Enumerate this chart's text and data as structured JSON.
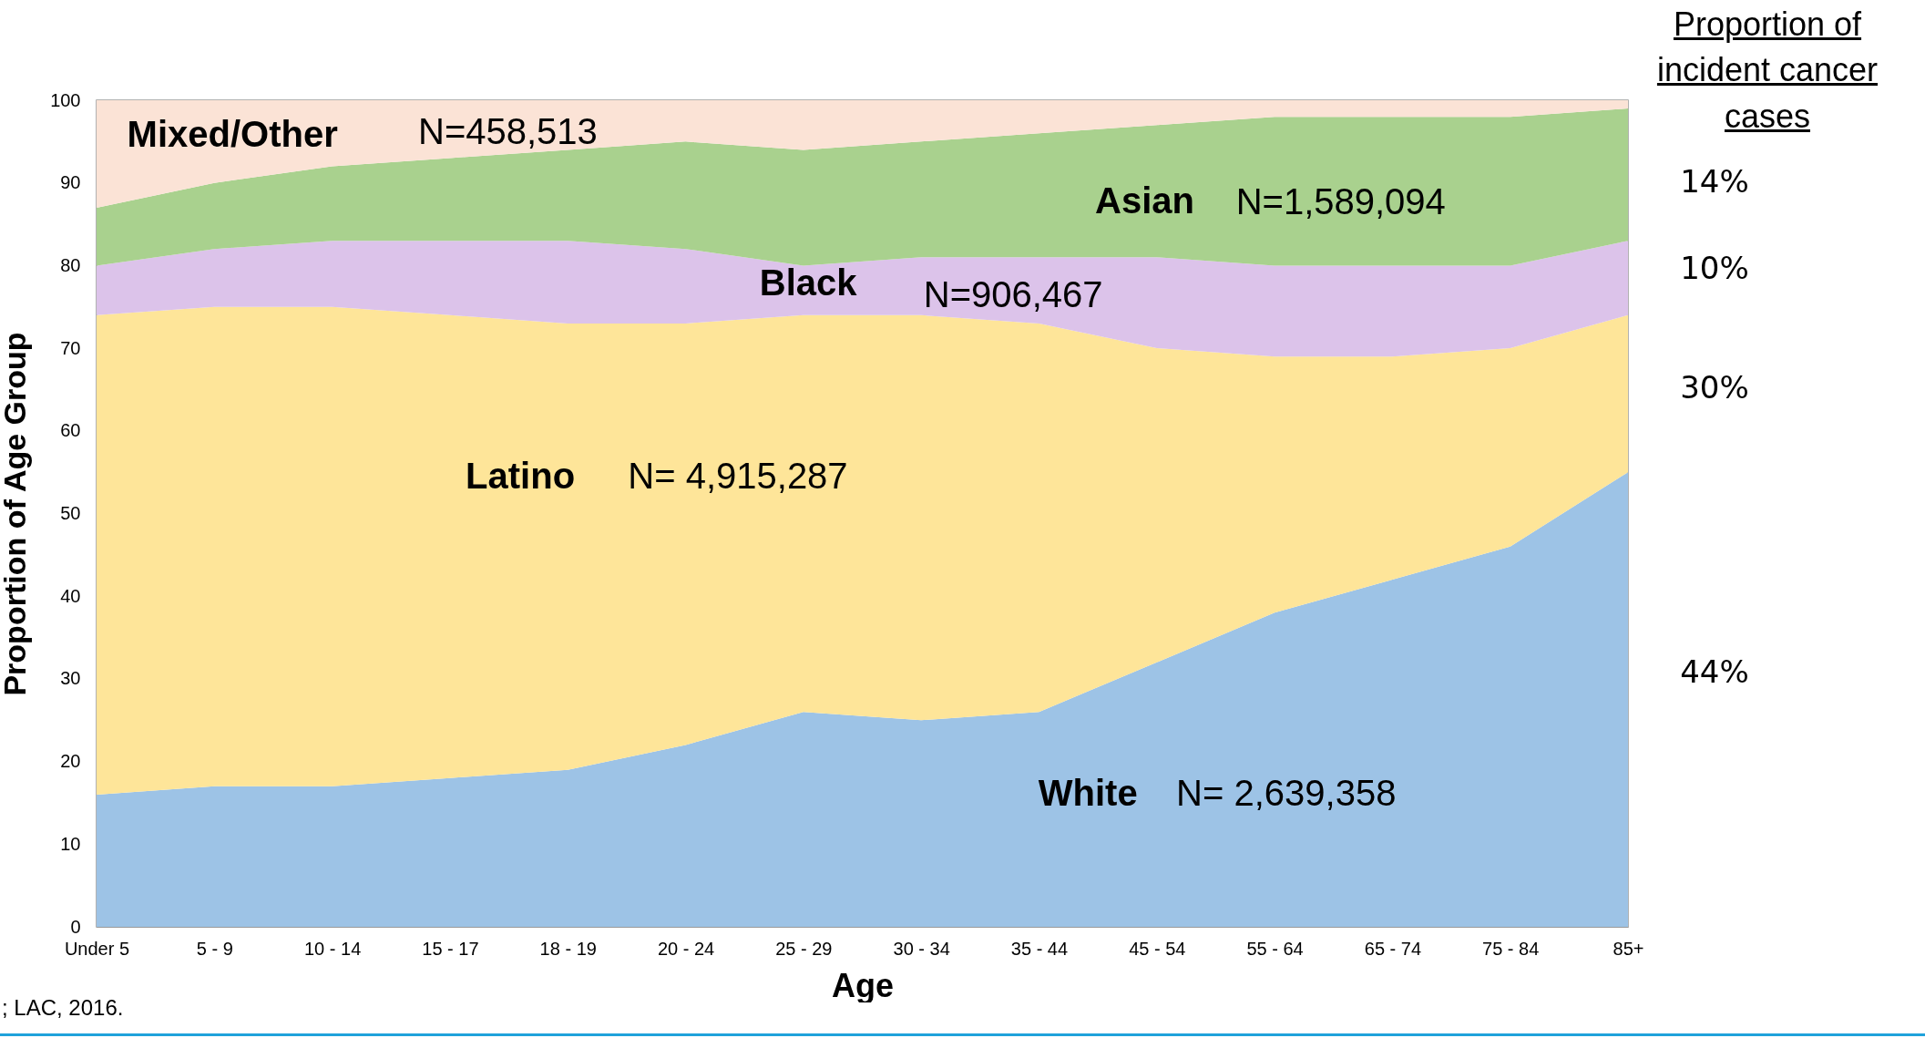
{
  "chart_data": {
    "type": "area",
    "stacked": true,
    "xlabel": "Age",
    "ylabel": "Proportion of Age Group",
    "categories": [
      "Under 5",
      "5 - 9",
      "10 - 14",
      "15 - 17",
      "18 - 19",
      "20 - 24",
      "25 - 29",
      "30 - 34",
      "35 - 44",
      "45 - 54",
      "55 - 64",
      "65 - 74",
      "75 - 84",
      "85+"
    ],
    "series": [
      {
        "name": "White",
        "color": "#9dc3e6",
        "values": [
          16,
          17,
          17,
          18,
          19,
          22,
          26,
          25,
          26,
          32,
          38,
          42,
          46,
          55
        ]
      },
      {
        "name": "Latino",
        "color": "#fee599",
        "values": [
          58,
          58,
          58,
          56,
          54,
          51,
          48,
          49,
          47,
          38,
          31,
          27,
          24,
          19
        ]
      },
      {
        "name": "Black",
        "color": "#dcc3ea",
        "values": [
          6,
          7,
          8,
          9,
          10,
          9,
          6,
          7,
          8,
          11,
          11,
          11,
          10,
          9
        ]
      },
      {
        "name": "Asian",
        "color": "#a9d18e",
        "values": [
          7,
          8,
          9,
          10,
          11,
          13,
          14,
          14,
          15,
          16,
          18,
          18,
          18,
          16
        ]
      },
      {
        "name": "Mixed/Other",
        "color": "#fbe3d6",
        "values": [
          13,
          10,
          8,
          7,
          6,
          5,
          6,
          5,
          4,
          3,
          2,
          2,
          2,
          1
        ]
      }
    ],
    "ylim": [
      0,
      100
    ],
    "yticks": [
      0,
      10,
      20,
      30,
      40,
      50,
      60,
      70,
      80,
      90,
      100
    ],
    "grid": false,
    "legend": false,
    "annotations": [
      "N= 2,639,358",
      "N= 4,915,287",
      "N=906,467",
      "N=1,589,094",
      "N=458,513",
      "44%",
      "30%",
      "10%",
      "14%",
      "Proportion of incident cancer cases",
      "; LAC, 2016."
    ]
  }
}
